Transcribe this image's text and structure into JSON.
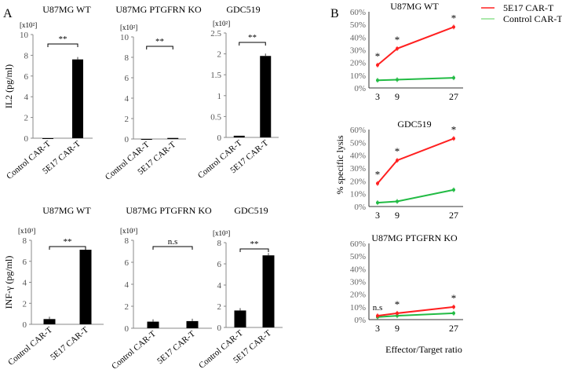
{
  "panel_labels": {
    "a": "A",
    "b": "B"
  },
  "legend": [
    "5E17 CAR-T",
    "Control CAR-T"
  ],
  "colors": {
    "red": "#ff2020",
    "green": "#22bb44",
    "bar": "#000000",
    "axis": "#888888"
  },
  "chart_data": [
    {
      "type": "bar",
      "title": "U87MG WT",
      "ylabel": "IL2 (pg/ml)",
      "scale": "[x10²]",
      "categories": [
        "Control CAR-T",
        "5E17 CAR-T"
      ],
      "values": [
        0,
        7.6
      ],
      "ylim": [
        0,
        10
      ],
      "ticks": [
        0,
        2,
        4,
        6,
        8,
        10
      ],
      "significance": "**"
    },
    {
      "type": "bar",
      "title": "U87MG PTGFRN KO",
      "ylabel": "",
      "scale": "[x10²]",
      "categories": [
        "Control CAR-T",
        "5E17 CAR-T"
      ],
      "values": [
        0,
        0.1
      ],
      "ylim": [
        0,
        10
      ],
      "ticks": [
        0,
        2,
        4,
        6,
        8,
        10
      ],
      "significance": "**"
    },
    {
      "type": "bar",
      "title": "GDC519",
      "ylabel": "",
      "scale": "[x10²]",
      "categories": [
        "Control CAR-T",
        "5E17 CAR-T"
      ],
      "values": [
        0.04,
        1.95
      ],
      "ylim": [
        0,
        2.5
      ],
      "ticks": [
        0,
        0.5,
        1,
        1.5,
        2,
        2.5
      ],
      "significance": "**"
    },
    {
      "type": "bar",
      "title": "U87MG WT",
      "ylabel": "INF-γ (pg/ml)",
      "scale": "[x10³]",
      "categories": [
        "Control CAR-T",
        "5E17 CAR-T"
      ],
      "values": [
        0.5,
        7.1
      ],
      "ylim": [
        0,
        8
      ],
      "ticks": [
        0,
        2,
        4,
        6,
        8
      ],
      "significance": "**"
    },
    {
      "type": "bar",
      "title": "U87MG PTGFRN KO",
      "ylabel": "",
      "scale": "[x10³]",
      "categories": [
        "Control CAR-T",
        "5E17 CAR-T"
      ],
      "values": [
        0.6,
        0.65
      ],
      "ylim": [
        0,
        8
      ],
      "ticks": [
        0,
        2,
        4,
        6,
        8
      ],
      "significance": "n.s"
    },
    {
      "type": "bar",
      "title": "GDC519",
      "ylabel": "",
      "scale": "[x10³]",
      "categories": [
        "Control CAR-T",
        "5E17 CAR-T"
      ],
      "values": [
        1.6,
        6.8
      ],
      "ylim": [
        0,
        8
      ],
      "ticks": [
        0,
        2,
        4,
        6,
        8
      ],
      "significance": "**"
    },
    {
      "type": "line",
      "title": "U87MG WT",
      "x": [
        3,
        9,
        27
      ],
      "ylim": [
        0,
        60
      ],
      "ticks": [
        "0%",
        "10%",
        "20%",
        "30%",
        "40%",
        "50%",
        "60%"
      ],
      "series": [
        {
          "name": "5E17 CAR-T",
          "values": [
            18,
            31,
            48
          ]
        },
        {
          "name": "Control CAR-T",
          "values": [
            6,
            6.5,
            8
          ]
        }
      ],
      "annotations": [
        "*",
        "*",
        "*"
      ]
    },
    {
      "type": "line",
      "title": "GDC519",
      "x": [
        3,
        9,
        27
      ],
      "ylim": [
        0,
        60
      ],
      "ticks": [
        "0%",
        "10%",
        "20%",
        "30%",
        "40%",
        "50%",
        "60%"
      ],
      "series": [
        {
          "name": "5E17 CAR-T",
          "values": [
            18,
            36,
            53
          ]
        },
        {
          "name": "Control CAR-T",
          "values": [
            3,
            4,
            13
          ]
        }
      ],
      "annotations": [
        "*",
        "*",
        "*"
      ]
    },
    {
      "type": "line",
      "title": "U87MG  PTGFRN KO",
      "x": [
        3,
        9,
        27
      ],
      "ylim": [
        0,
        60
      ],
      "ticks": [
        "0%",
        "10%",
        "20%",
        "30%",
        "40%",
        "50%",
        "60%"
      ],
      "series": [
        {
          "name": "5E17 CAR-T",
          "values": [
            3,
            5,
            10
          ]
        },
        {
          "name": "Control CAR-T",
          "values": [
            2,
            3,
            5
          ]
        }
      ],
      "annotations": [
        "n.s",
        "*",
        "*"
      ]
    }
  ],
  "line_ylabel": "% specific lysis",
  "line_xlabel": "Effector/Target ratio"
}
